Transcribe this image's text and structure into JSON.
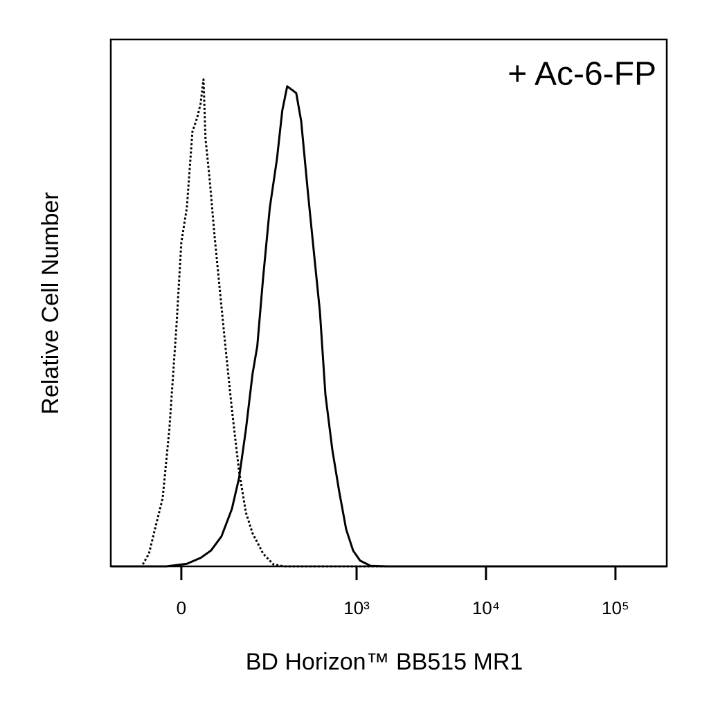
{
  "chart_data": {
    "type": "line",
    "annotation": "+ Ac-6-FP",
    "x_label": "BD Horizon™ BB515 MR1",
    "y_label": "Relative Cell Number",
    "x_scale": "biexponential",
    "xlim": [
      -143,
      249000
    ],
    "xticks": [
      0,
      {
        "value": 1000,
        "label": "10³"
      },
      {
        "value": 10000,
        "label": "10⁴"
      },
      {
        "value": 100000,
        "label": "10⁵"
      }
    ],
    "ylim": [
      0,
      100
    ],
    "series": [
      {
        "color": "#000000",
        "line_style": "dotted",
        "x": [
          -143,
          -68,
          -54,
          -42,
          -30,
          -19,
          -7.6,
          0,
          8.8,
          17.6,
          25.5,
          31,
          35.9,
          39.4,
          46.8,
          55.6,
          66,
          77,
          91,
          108,
          126,
          145,
          180,
          219,
          267,
          249000
        ],
        "values": [
          0,
          0,
          2.4,
          7.6,
          12.9,
          26,
          45.7,
          61.5,
          68.1,
          82.5,
          85.2,
          87.8,
          92.4,
          81.2,
          73.3,
          62.7,
          52.2,
          41.7,
          29.8,
          18.0,
          10.2,
          6.3,
          2.4,
          0.4,
          0,
          0
        ]
      },
      {
        "color": "#000000",
        "line_style": "solid",
        "x": [
          -143,
          -24,
          8.8,
          31,
          49,
          69,
          91,
          108,
          126,
          145,
          160,
          180,
          205,
          235,
          260,
          285,
          313,
          337,
          369,
          418,
          474,
          518,
          572,
          648,
          733,
          830,
          940,
          1063,
          1280,
          1740,
          249000
        ],
        "values": [
          0,
          0,
          0.5,
          1.6,
          3.0,
          5.7,
          10.9,
          16.8,
          26,
          36.5,
          41.8,
          54.9,
          68.1,
          77.3,
          86.5,
          91.1,
          90.4,
          89.8,
          84.5,
          70.7,
          57.6,
          48.4,
          32.6,
          22.1,
          14.2,
          7.0,
          3.0,
          1.1,
          0.1,
          0,
          0
        ]
      }
    ]
  }
}
